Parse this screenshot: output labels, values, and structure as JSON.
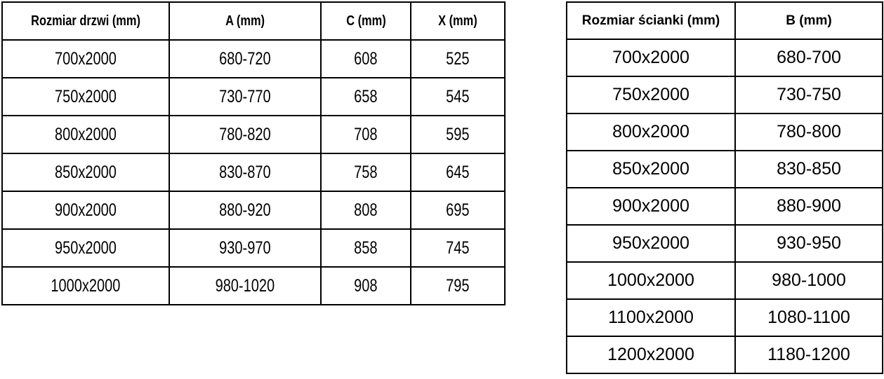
{
  "colors": {
    "background": "#ffffff",
    "border": "#000000",
    "text": "#000000"
  },
  "door_table": {
    "headers": [
      "Rozmiar drzwi (mm)",
      "A (mm)",
      "C (mm)",
      "X (mm)"
    ],
    "rows": [
      [
        "700x2000",
        "680-720",
        "608",
        "525"
      ],
      [
        "750x2000",
        "730-770",
        "658",
        "545"
      ],
      [
        "800x2000",
        "780-820",
        "708",
        "595"
      ],
      [
        "850x2000",
        "830-870",
        "758",
        "645"
      ],
      [
        "900x2000",
        "880-920",
        "808",
        "695"
      ],
      [
        "950x2000",
        "930-970",
        "858",
        "745"
      ],
      [
        "1000x2000",
        "980-1020",
        "908",
        "795"
      ]
    ]
  },
  "wall_table": {
    "headers": [
      "Rozmiar ścianki (mm)",
      "B (mm)"
    ],
    "rows": [
      [
        "700x2000",
        "680-700"
      ],
      [
        "750x2000",
        "730-750"
      ],
      [
        "800x2000",
        "780-800"
      ],
      [
        "850x2000",
        "830-850"
      ],
      [
        "900x2000",
        "880-900"
      ],
      [
        "950x2000",
        "930-950"
      ],
      [
        "1000x2000",
        "980-1000"
      ],
      [
        "1100x2000",
        "1080-1100"
      ],
      [
        "1200x2000",
        "1180-1200"
      ]
    ]
  }
}
